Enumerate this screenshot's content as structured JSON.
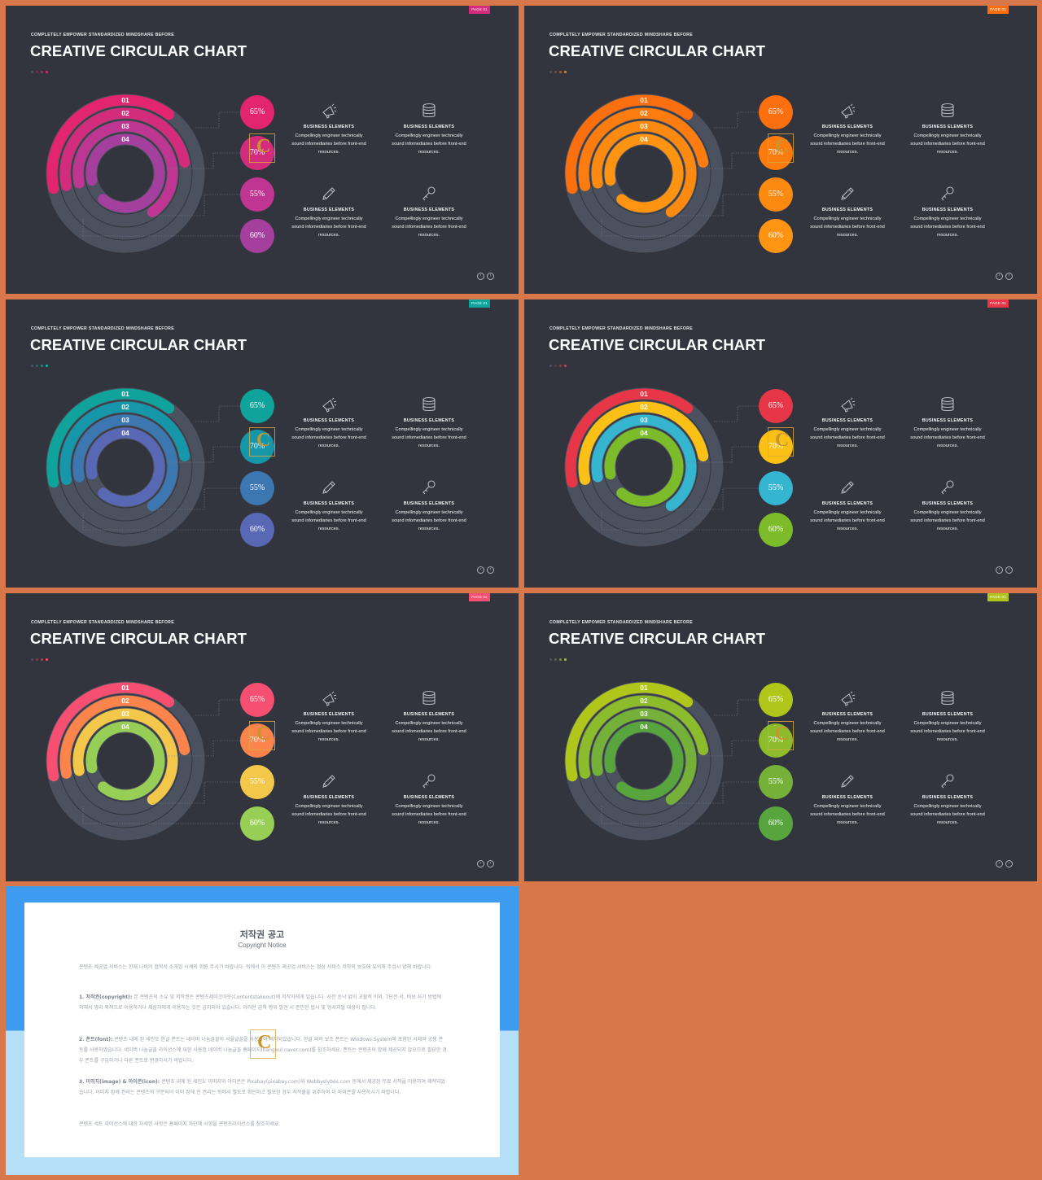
{
  "slides": [
    {
      "page_tag": "PAGE 01",
      "subtitle": "COMPLETELY EMPOWER STANDARDIZED MINDSHARE BEFORE",
      "title": "CREATIVE CIRCULAR CHART",
      "theme_colors": [
        "#e3246f",
        "#d42c7d",
        "#be3691",
        "#a43f9e"
      ],
      "tag_color": "#d42c7d",
      "dots": [
        "#4e5462",
        "#7a2a59",
        "#a0306e",
        "#e3246f"
      ]
    },
    {
      "page_tag": "PAGE 01",
      "subtitle": "COMPLETELY EMPOWER STANDARDIZED MINDSHARE BEFORE",
      "title": "CREATIVE CIRCULAR CHART",
      "theme_colors": [
        "#fb6f0f",
        "#fd7c0f",
        "#fd8a10",
        "#fe9411"
      ],
      "tag_color": "#fb6f0f",
      "dots": [
        "#4e5462",
        "#8a4a25",
        "#b35a1c",
        "#fb7d10"
      ]
    },
    {
      "page_tag": "PAGE 01",
      "subtitle": "COMPLETELY EMPOWER STANDARDIZED MINDSHARE BEFORE",
      "title": "CREATIVE CIRCULAR CHART",
      "theme_colors": [
        "#0fa39b",
        "#1596a9",
        "#3d77b2",
        "#5868b5"
      ],
      "tag_color": "#0fa39b",
      "dots": [
        "#4e5462",
        "#2a6a6a",
        "#1f8a8a",
        "#0fb8b0"
      ]
    },
    {
      "page_tag": "PAGE 01",
      "subtitle": "COMPLETELY EMPOWER STANDARDIZED MINDSHARE BEFORE",
      "title": "CREATIVE CIRCULAR CHART",
      "theme_colors": [
        "#e73648",
        "#fbc015",
        "#36b5d0",
        "#7cbc2a"
      ],
      "tag_color": "#e73648",
      "dots": [
        "#4e5462",
        "#7a3038",
        "#a3323f",
        "#e73648"
      ]
    },
    {
      "page_tag": "PAGE 01",
      "subtitle": "COMPLETELY EMPOWER STANDARDIZED MINDSHARE BEFORE",
      "title": "CREATIVE CIRCULAR CHART",
      "theme_colors": [
        "#f64f72",
        "#fb844c",
        "#f3c84a",
        "#97cf56"
      ],
      "tag_color": "#f64f72",
      "dots": [
        "#4e5462",
        "#7a3a48",
        "#a8425a",
        "#f64f72"
      ]
    },
    {
      "page_tag": "PAGE 01",
      "subtitle": "COMPLETELY EMPOWER STANDARDIZED MINDSHARE BEFORE",
      "title": "CREATIVE CIRCULAR CHART",
      "theme_colors": [
        "#b0c61b",
        "#8cbb2b",
        "#75b138",
        "#58a43d"
      ],
      "tag_color": "#b0c61b",
      "dots": [
        "#4e5462",
        "#5c6a2a",
        "#7f9425",
        "#b0c61b"
      ]
    }
  ],
  "chart_data": {
    "type": "radial-bar",
    "categories": [
      "01",
      "02",
      "03",
      "04"
    ],
    "values": [
      65,
      70,
      55,
      60
    ],
    "value_labels": [
      "65%",
      "70%",
      "55%",
      "60%"
    ],
    "unit": "%"
  },
  "business": {
    "heading": "BUSINESS ELEMENTS",
    "desc_1": "Compellingly engineer technically",
    "desc_2": "sound infomediaries before front-end",
    "desc_3": "resources.",
    "icons": [
      "megaphone-icon",
      "database-icon",
      "pencil-icon",
      "key-icon"
    ]
  },
  "notice": {
    "title": "저작권 공고",
    "subtitle": "Copyright Notice",
    "p0": "콘텐츠 제공업 서비스는 현재 나비의 협약서 소개된 사세의 회원 주시기 바랍니다. 뒤에서 이 콘텐츠 제공업 서비스는 정상 서비스 저작의 보호에 유의해 주십시 양해 바랍니다.",
    "p1_head": "1. 저작권(copyright):",
    "p1": " 본 콘텐츠의 소유 및 저작권은 콘텐츠제이크아웃(Contentstakeout)에 저작자에게 있습니다. 사전 승낙 없이 교할적 이외, 7단전 서, 비보 사기 방법에 의해서 영리 목적으로 이용하거나 제삼자에게 이용하는 것은 금지되어 있습니다. 이러한 금칙 행위 발견 시 준민한 법사 및 형사처벌 대상이 됩니다.",
    "p2_head": "2. 폰트(font):",
    "p2": " 콘텐츠 내에 된 세인도 한글 폰트는 네이버 나눔글꼴의 서울글꼴을 사용하여 제작되었습니다. 한글 외의 보조 폰트는 Windows System에 포함된 서체와 공용 폰트를 사용하였습니다. 네이버 나눔글꼴 라이선스에 대한 사용한 네이버 나눔글꼴 홈페이지(hangeul.naver.com)를 참조하세요. 폰트는 콘텐츠의 함께 제공되지 않으므로 필요한 경우 폰트를 구입하거나 다른 폰트로 변경하시기 바랍니다.",
    "p3_head": "3. 이미지(image) & 아이콘(icon):",
    "p3": " 콘텐츠 내에 된 세인도 이미지와 아이콘은 Pixabay(pixabay.com)와 Webbyslybes.com 등에서 제공된 무료 서적을 이용하여 제작되었습니다. 이미지 함께 권리는 콘텐츠의 구분되어 이미 정해 진 권리는 뒤에서 별도로 확인하고 필요한 경우 저작물을 위주하여 이 아이콘을 사용하시기 바랍니다.",
    "p4": "콘텐츠 세트 라이선스에 대한 자세한 사항은 홈페이지 하단에 사항을 콘텐츠라이선스를 참조하세요."
  }
}
